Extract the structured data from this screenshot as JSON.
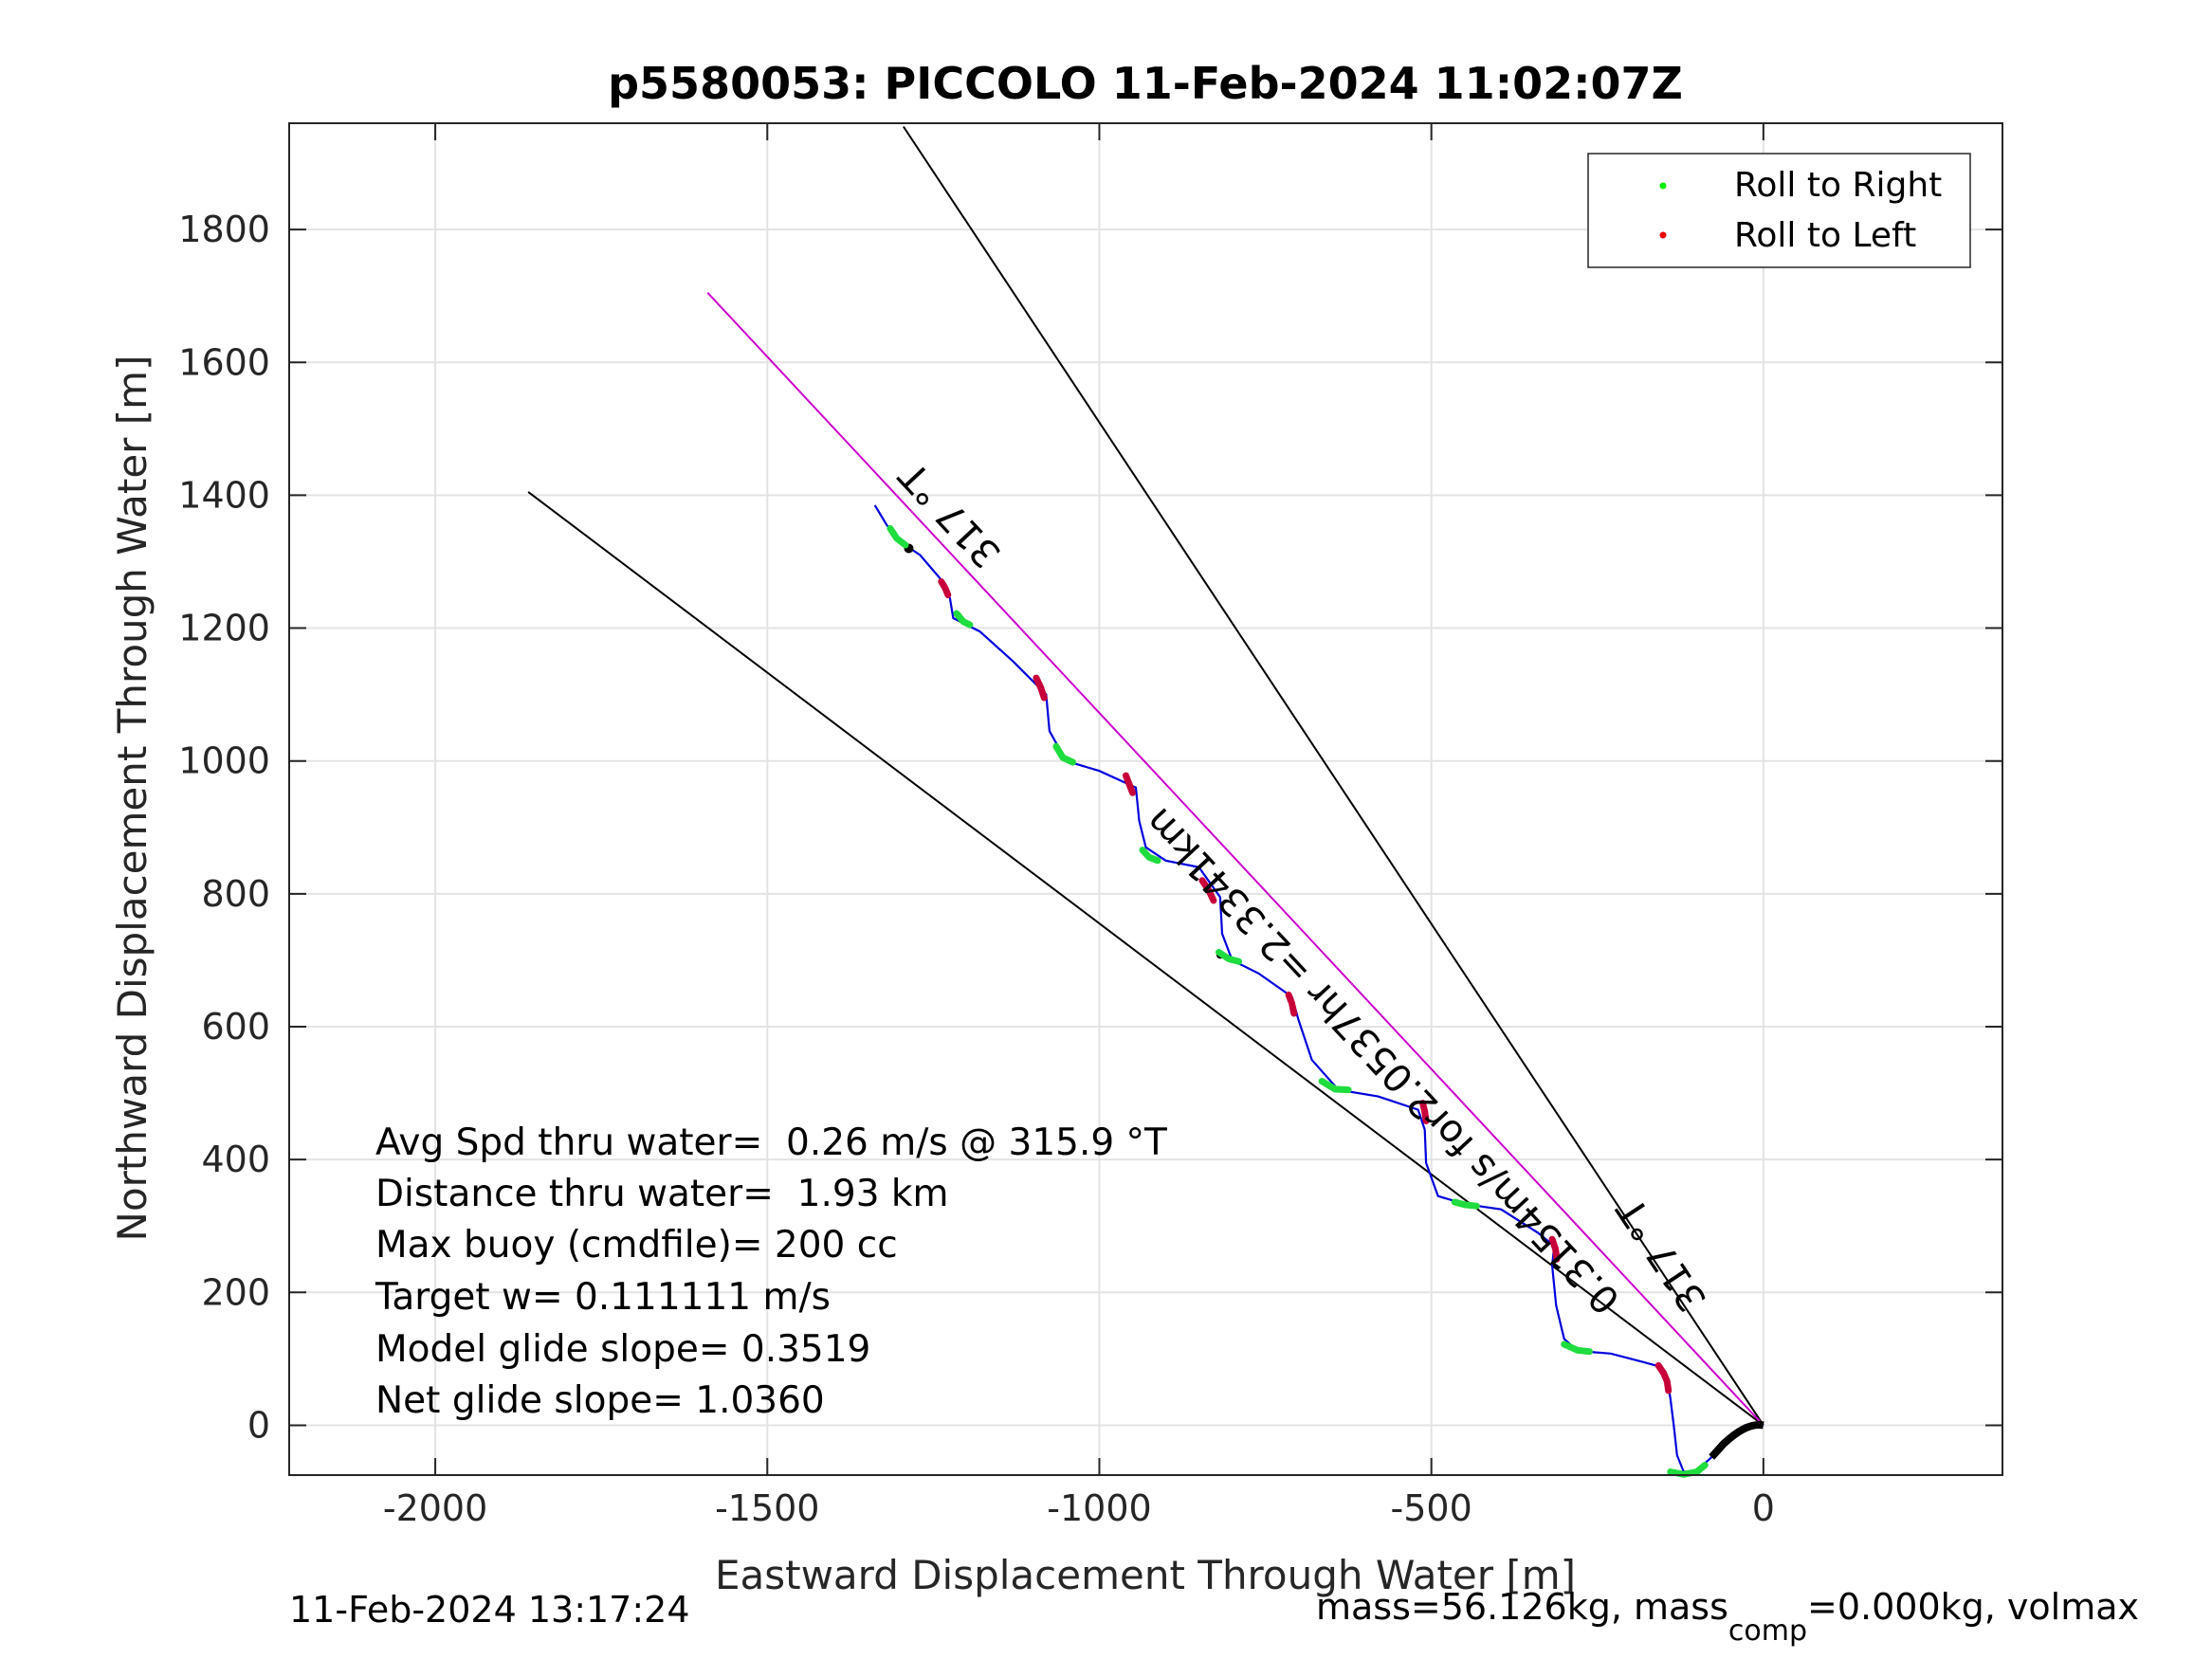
{
  "chart_data": {
    "type": "line",
    "title": "p5580053: PICCOLO 11-Feb-2024 11:02:07Z",
    "xlabel": "Eastward Displacement Through Water [m]",
    "ylabel": "Northward Displacement Through Water [m]",
    "xlim": [
      -2220,
      360
    ],
    "ylim": [
      -75,
      1960
    ],
    "xticks": [
      -2000,
      -1500,
      -1000,
      -500,
      0
    ],
    "yticks": [
      0,
      200,
      400,
      600,
      800,
      1000,
      1200,
      1400,
      1600,
      1800
    ],
    "xticklabels": [
      "-2000",
      "-1500",
      "-1000",
      "-500",
      "0"
    ],
    "yticklabels": [
      "0",
      "200",
      "400",
      "600",
      "800",
      "1000",
      "1200",
      "1400",
      "1600",
      "1800"
    ],
    "grid": true,
    "legend": {
      "placement": "top-right",
      "entries": [
        {
          "label": "Roll to Right",
          "color": "#00ee00"
        },
        {
          "label": "Roll to Left",
          "color": "#ee0000"
        }
      ]
    },
    "heading_lines": [
      {
        "label": "317 °T",
        "from": [
          0,
          0
        ],
        "to": [
          -1295,
          1955
        ]
      },
      {
        "label": "",
        "from": [
          0,
          0
        ],
        "to": [
          -1860,
          1405
        ]
      },
      {
        "label": "317 °T",
        "from": [
          0,
          0
        ],
        "to": [
          -1590,
          1705
        ],
        "color": "#cc00cc"
      }
    ],
    "speed_annotation": "0.3154m/s for2.0537hr =2.3341km",
    "track": {
      "color": "#0000dd",
      "points": [
        [
          0,
          0
        ],
        [
          -10,
          2
        ],
        [
          -28,
          0
        ],
        [
          -40,
          -10
        ],
        [
          -60,
          -28
        ],
        [
          -80,
          -50
        ],
        [
          -100,
          -68
        ],
        [
          -120,
          -70
        ],
        [
          -130,
          -45
        ],
        [
          -135,
          0
        ],
        [
          -140,
          40
        ],
        [
          -145,
          70
        ],
        [
          -155,
          88
        ],
        [
          -180,
          95
        ],
        [
          -230,
          108
        ],
        [
          -280,
          112
        ],
        [
          -300,
          130
        ],
        [
          -312,
          180
        ],
        [
          -318,
          240
        ],
        [
          -315,
          270
        ],
        [
          -340,
          290
        ],
        [
          -395,
          325
        ],
        [
          -450,
          333
        ],
        [
          -490,
          345
        ],
        [
          -508,
          395
        ],
        [
          -510,
          445
        ],
        [
          -520,
          475
        ],
        [
          -580,
          495
        ],
        [
          -640,
          505
        ],
        [
          -680,
          550
        ],
        [
          -700,
          610
        ],
        [
          -710,
          645
        ],
        [
          -760,
          680
        ],
        [
          -800,
          700
        ],
        [
          -815,
          740
        ],
        [
          -818,
          795
        ],
        [
          -850,
          840
        ],
        [
          -900,
          850
        ],
        [
          -930,
          870
        ],
        [
          -940,
          910
        ],
        [
          -945,
          960
        ],
        [
          -1000,
          985
        ],
        [
          -1050,
          1000
        ],
        [
          -1075,
          1045
        ],
        [
          -1080,
          1100
        ],
        [
          -1130,
          1150
        ],
        [
          -1180,
          1195
        ],
        [
          -1220,
          1215
        ],
        [
          -1225,
          1245
        ],
        [
          -1240,
          1275
        ],
        [
          -1270,
          1310
        ],
        [
          -1300,
          1330
        ],
        [
          -1320,
          1355
        ],
        [
          -1338,
          1385
        ]
      ]
    },
    "roll_right_segments": [
      [
        [
          -140,
          -70
        ],
        [
          -120,
          -74
        ],
        [
          -100,
          -70
        ],
        [
          -88,
          -60
        ]
      ],
      [
        [
          -300,
          122
        ],
        [
          -280,
          113
        ],
        [
          -262,
          111
        ]
      ],
      [
        [
          -465,
          336
        ],
        [
          -450,
          332
        ],
        [
          -432,
          330
        ]
      ],
      [
        [
          -665,
          518
        ],
        [
          -645,
          506
        ],
        [
          -625,
          505
        ]
      ],
      [
        [
          -820,
          712
        ],
        [
          -805,
          702
        ],
        [
          -790,
          698
        ]
      ],
      [
        [
          -935,
          866
        ],
        [
          -925,
          855
        ],
        [
          -912,
          850
        ]
      ],
      [
        [
          -1065,
          1022
        ],
        [
          -1055,
          1005
        ],
        [
          -1040,
          998
        ]
      ],
      [
        [
          -1215,
          1222
        ],
        [
          -1205,
          1210
        ],
        [
          -1195,
          1205
        ]
      ],
      [
        [
          -1315,
          1350
        ],
        [
          -1305,
          1335
        ],
        [
          -1292,
          1325
        ]
      ]
    ],
    "roll_left_segments": [
      [
        [
          -158,
          90
        ],
        [
          -150,
          78
        ],
        [
          -145,
          66
        ],
        [
          -143,
          52
        ]
      ],
      [
        [
          -318,
          280
        ],
        [
          -313,
          265
        ],
        [
          -311,
          250
        ]
      ],
      [
        [
          -513,
          485
        ],
        [
          -510,
          472
        ],
        [
          -508,
          458
        ]
      ],
      [
        [
          -715,
          648
        ],
        [
          -710,
          635
        ],
        [
          -707,
          620
        ]
      ],
      [
        [
          -845,
          820
        ],
        [
          -835,
          805
        ],
        [
          -828,
          790
        ]
      ],
      [
        [
          -960,
          978
        ],
        [
          -955,
          965
        ],
        [
          -950,
          952
        ]
      ],
      [
        [
          -1095,
          1125
        ],
        [
          -1088,
          1110
        ],
        [
          -1083,
          1095
        ]
      ],
      [
        [
          -1238,
          1270
        ],
        [
          -1232,
          1260
        ],
        [
          -1228,
          1250
        ]
      ]
    ],
    "stats_lines": [
      "Avg Spd thru water=  0.26 m/s @ 315.9 °T",
      "Distance thru water=  1.93 km",
      "Max buoy (cmdfile)= 200 cc",
      "Target w= 0.111111 m/s",
      "Model glide slope= 0.3519",
      "Net glide slope= 1.0360"
    ],
    "footer_left": "11-Feb-2024 13:17:24",
    "footer_right_pre": "mass=56.126kg, mass",
    "footer_right_sub": "comp",
    "footer_right_post": "=0.000kg, volmax"
  }
}
